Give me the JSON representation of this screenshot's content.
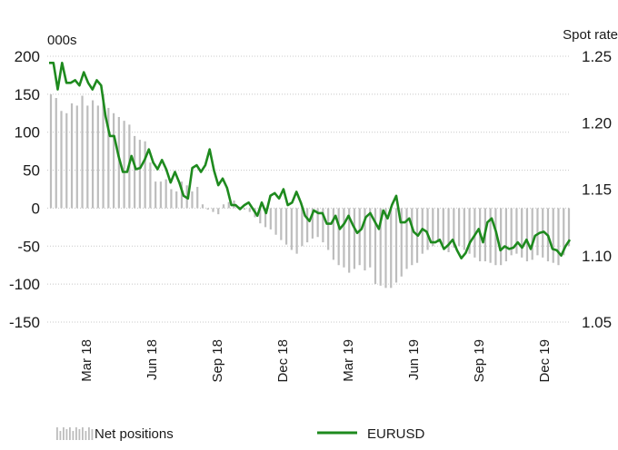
{
  "chart_data": {
    "type": "bar+line",
    "left_axis": {
      "label": "000s",
      "ticks": [
        "200",
        "150",
        "100",
        "50",
        "0",
        "-50",
        "-100",
        "-150"
      ],
      "range": [
        -150,
        200
      ]
    },
    "right_axis": {
      "label": "Spot rate",
      "ticks": [
        "1.25",
        "1.20",
        "1.15",
        "1.10",
        "1.05"
      ],
      "range": [
        1.05,
        1.25
      ]
    },
    "x_axis": {
      "tick_labels": [
        "Mar 18",
        "Jun 18",
        "Sep 18",
        "Dec 18",
        "Mar 19",
        "Jun 19",
        "Sep 19",
        "Dec 19"
      ]
    },
    "grid": "horizontal dotted",
    "legend": [
      {
        "label": "Net positions",
        "style": "grey bars",
        "color": "#bdbdbd"
      },
      {
        "label": "EURUSD",
        "style": "green line",
        "color": "#1e8a1e"
      }
    ],
    "series": [
      {
        "name": "Net positions",
        "kind": "bar",
        "color": "#bdbdbd",
        "values": [
          150,
          145,
          128,
          125,
          138,
          135,
          148,
          135,
          142,
          135,
          150,
          132,
          125,
          120,
          115,
          110,
          95,
          90,
          88,
          60,
          35,
          35,
          38,
          25,
          22,
          35,
          30,
          22,
          28,
          5,
          -2,
          -5,
          -8,
          5,
          8,
          10,
          2,
          -2,
          -5,
          -12,
          -20,
          -25,
          -28,
          -35,
          -42,
          -48,
          -55,
          -60,
          -50,
          -45,
          -40,
          -38,
          -45,
          -55,
          -68,
          -75,
          -78,
          -85,
          -80,
          -75,
          -82,
          -78,
          -100,
          -102,
          -105,
          -105,
          -98,
          -90,
          -80,
          -75,
          -72,
          -60,
          -55,
          -50,
          -45,
          -48,
          -58,
          -52,
          -50,
          -55,
          -60,
          -65,
          -70,
          -70,
          -72,
          -75,
          -75,
          -70,
          -62,
          -60,
          -65,
          -70,
          -68,
          -62,
          -65,
          -70,
          -72,
          -75,
          -62,
          -50
        ]
      },
      {
        "name": "EURUSD",
        "kind": "line",
        "color": "#1e8a1e",
        "values": [
          1.245,
          1.245,
          1.225,
          1.245,
          1.23,
          1.23,
          1.232,
          1.228,
          1.238,
          1.23,
          1.225,
          1.232,
          1.228,
          1.205,
          1.19,
          1.19,
          1.175,
          1.163,
          1.163,
          1.175,
          1.165,
          1.166,
          1.172,
          1.18,
          1.17,
          1.165,
          1.172,
          1.165,
          1.155,
          1.163,
          1.155,
          1.145,
          1.143,
          1.166,
          1.168,
          1.163,
          1.168,
          1.18,
          1.164,
          1.153,
          1.158,
          1.151,
          1.138,
          1.138,
          1.135,
          1.138,
          1.14,
          1.135,
          1.13,
          1.14,
          1.132,
          1.145,
          1.147,
          1.143,
          1.15,
          1.138,
          1.14,
          1.148,
          1.14,
          1.13,
          1.126,
          1.134,
          1.132,
          1.132,
          1.124,
          1.124,
          1.13,
          1.12,
          1.124,
          1.13,
          1.123,
          1.117,
          1.12,
          1.129,
          1.132,
          1.126,
          1.12,
          1.134,
          1.128,
          1.138,
          1.145,
          1.125,
          1.125,
          1.128,
          1.118,
          1.115,
          1.12,
          1.118,
          1.11,
          1.11,
          1.112,
          1.105,
          1.108,
          1.112,
          1.104,
          1.098,
          1.102,
          1.11,
          1.115,
          1.12,
          1.11,
          1.125,
          1.128,
          1.118,
          1.104,
          1.107,
          1.105,
          1.106,
          1.11,
          1.106,
          1.112,
          1.105,
          1.115,
          1.117,
          1.118,
          1.115,
          1.105,
          1.104,
          1.1,
          1.107,
          1.112
        ]
      }
    ]
  }
}
